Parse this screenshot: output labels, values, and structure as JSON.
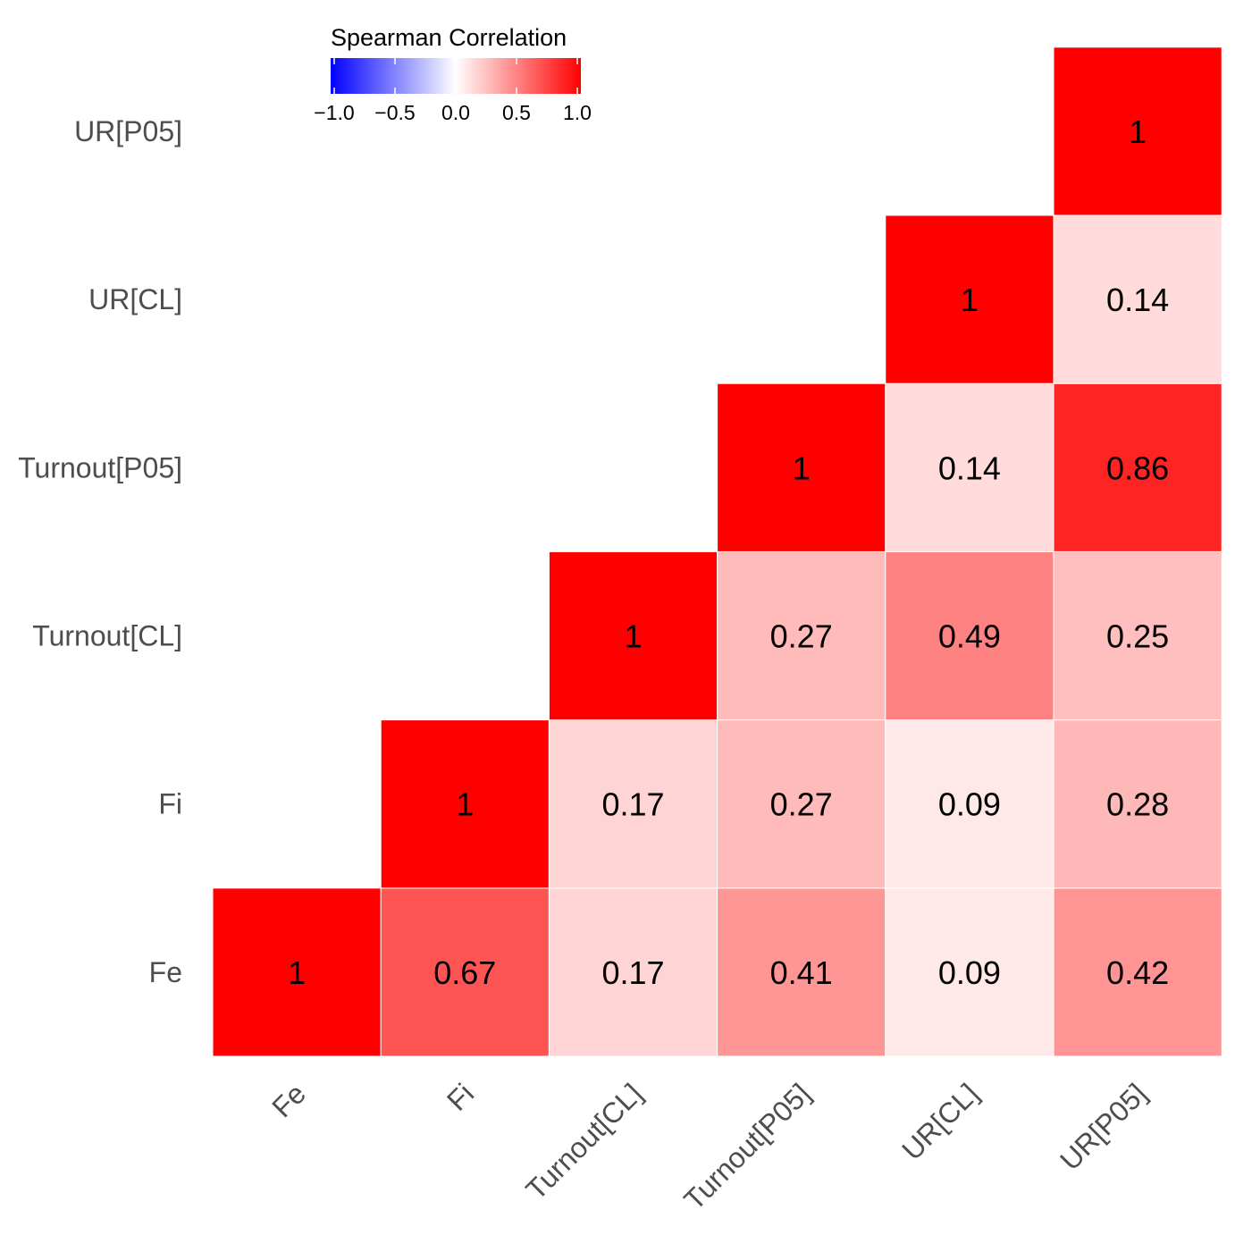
{
  "chart_data": {
    "type": "heatmap",
    "variables": [
      "Fe",
      "Fi",
      "Turnout[CL]",
      "Turnout[P05]",
      "UR[CL]",
      "UR[P05]"
    ],
    "cells": [
      {
        "x": "Fe",
        "y": "Fe",
        "value": 1,
        "label": "1"
      },
      {
        "x": "Fi",
        "y": "Fe",
        "value": 0.67,
        "label": "0.67"
      },
      {
        "x": "Turnout[CL]",
        "y": "Fe",
        "value": 0.17,
        "label": "0.17"
      },
      {
        "x": "Turnout[P05]",
        "y": "Fe",
        "value": 0.41,
        "label": "0.41"
      },
      {
        "x": "UR[CL]",
        "y": "Fe",
        "value": 0.09,
        "label": "0.09"
      },
      {
        "x": "UR[P05]",
        "y": "Fe",
        "value": 0.42,
        "label": "0.42"
      },
      {
        "x": "Fi",
        "y": "Fi",
        "value": 1,
        "label": "1"
      },
      {
        "x": "Turnout[CL]",
        "y": "Fi",
        "value": 0.17,
        "label": "0.17"
      },
      {
        "x": "Turnout[P05]",
        "y": "Fi",
        "value": 0.27,
        "label": "0.27"
      },
      {
        "x": "UR[CL]",
        "y": "Fi",
        "value": 0.09,
        "label": "0.09"
      },
      {
        "x": "UR[P05]",
        "y": "Fi",
        "value": 0.28,
        "label": "0.28"
      },
      {
        "x": "Turnout[CL]",
        "y": "Turnout[CL]",
        "value": 1,
        "label": "1"
      },
      {
        "x": "Turnout[P05]",
        "y": "Turnout[CL]",
        "value": 0.27,
        "label": "0.27"
      },
      {
        "x": "UR[CL]",
        "y": "Turnout[CL]",
        "value": 0.49,
        "label": "0.49"
      },
      {
        "x": "UR[P05]",
        "y": "Turnout[CL]",
        "value": 0.25,
        "label": "0.25"
      },
      {
        "x": "Turnout[P05]",
        "y": "Turnout[P05]",
        "value": 1,
        "label": "1"
      },
      {
        "x": "UR[CL]",
        "y": "Turnout[P05]",
        "value": 0.14,
        "label": "0.14"
      },
      {
        "x": "UR[P05]",
        "y": "Turnout[P05]",
        "value": 0.86,
        "label": "0.86"
      },
      {
        "x": "UR[CL]",
        "y": "UR[CL]",
        "value": 1,
        "label": "1"
      },
      {
        "x": "UR[P05]",
        "y": "UR[CL]",
        "value": 0.14,
        "label": "0.14"
      },
      {
        "x": "UR[P05]",
        "y": "UR[P05]",
        "value": 1,
        "label": "1"
      }
    ],
    "legend": {
      "title": "Spearman Correlation",
      "ticks": [
        -1.0,
        -0.5,
        0.0,
        0.5,
        1.0
      ],
      "tick_labels": [
        "−1.0",
        "−0.5",
        "0.0",
        "0.5",
        "1.0"
      ],
      "range": [
        -1,
        1
      ],
      "position": "top-left"
    },
    "colors": {
      "low": "#0000ff",
      "mid": "#ffffff",
      "high": "#ff0000"
    },
    "grid": false
  }
}
